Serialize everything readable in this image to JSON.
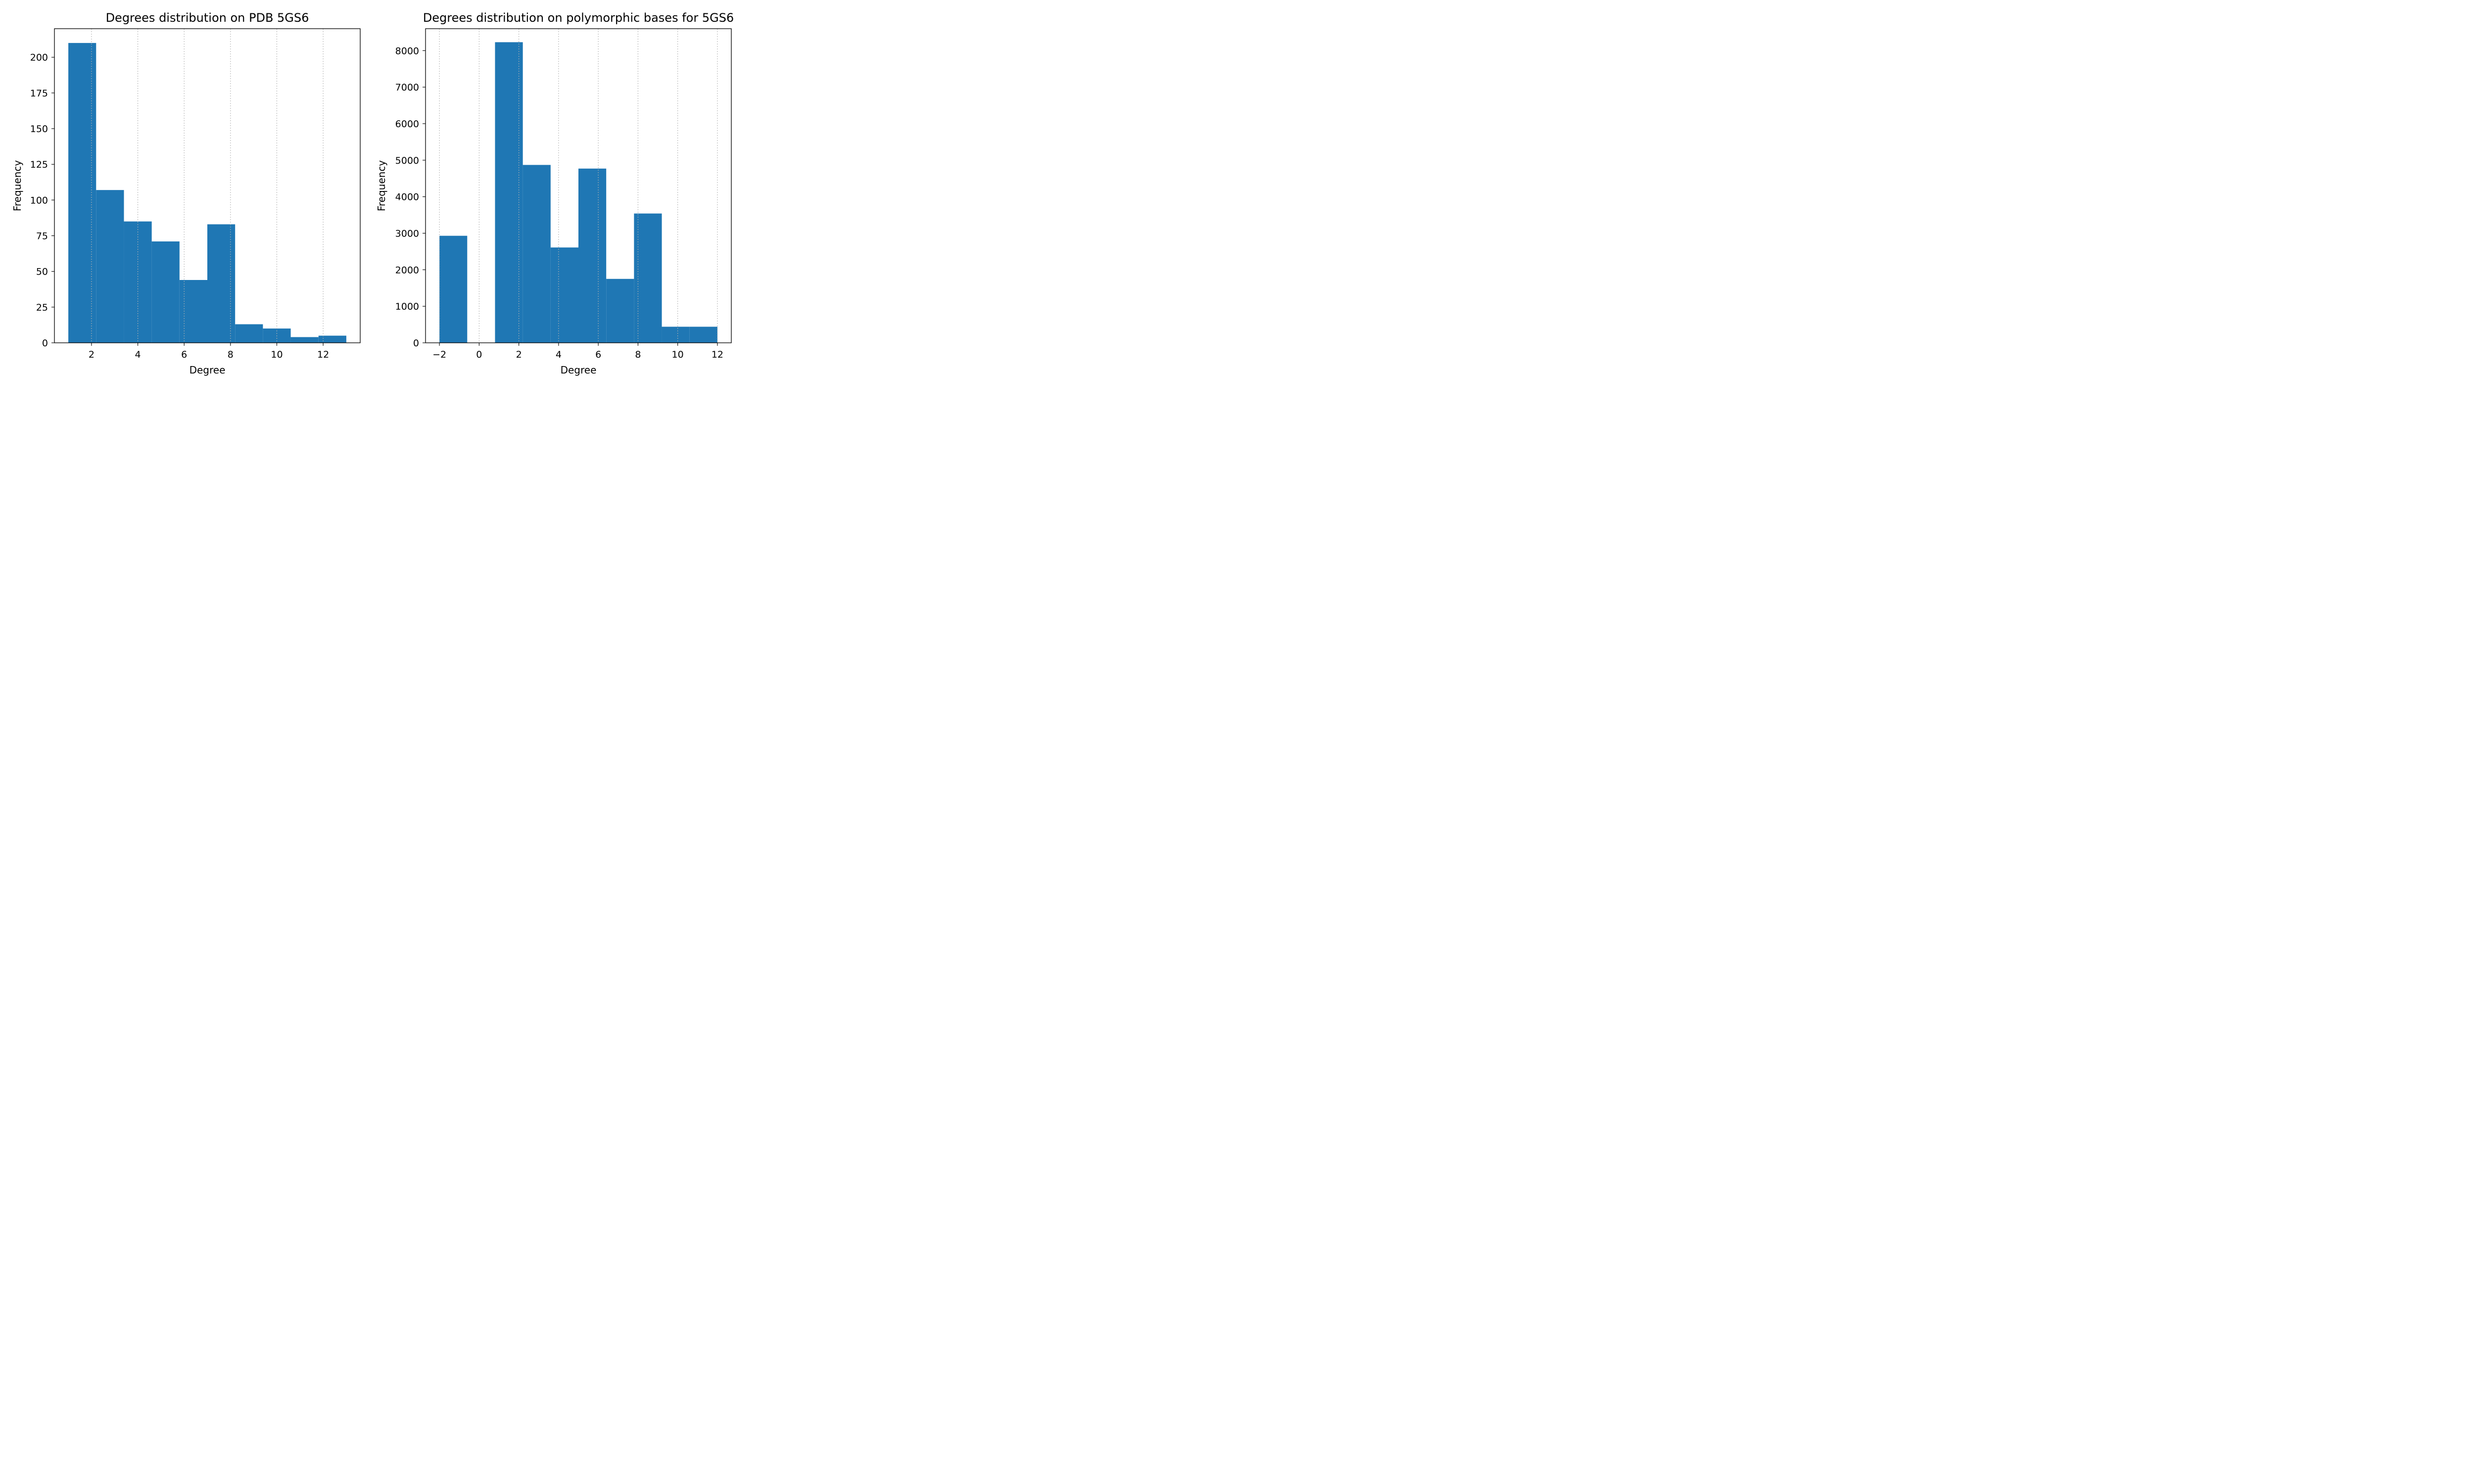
{
  "chart_data": [
    {
      "type": "bar",
      "title": "Degrees distribution on PDB 5GS6",
      "xlabel": "Degree",
      "ylabel": "Frequency",
      "xlim": [
        0.4,
        13.6
      ],
      "ylim": [
        0,
        220
      ],
      "xticks": [
        2,
        4,
        6,
        8,
        10,
        12
      ],
      "xtick_labels": [
        "2",
        "4",
        "6",
        "8",
        "10",
        "12"
      ],
      "yticks": [
        0,
        25,
        50,
        75,
        100,
        125,
        150,
        175,
        200
      ],
      "ytick_labels": [
        "0",
        "25",
        "50",
        "75",
        "100",
        "125",
        "150",
        "175",
        "200"
      ],
      "grid": "x-dotted",
      "bin_edges": [
        1.0,
        2.2,
        3.4,
        4.6,
        5.8,
        7.0,
        8.2,
        9.4,
        10.6,
        11.8,
        13.0
      ],
      "values": [
        210,
        107,
        85,
        71,
        44,
        83,
        13,
        10,
        4,
        5
      ]
    },
    {
      "type": "bar",
      "title": "Degrees distribution on polymorphic bases for 5GS6",
      "xlabel": "Degree",
      "ylabel": "Frequency",
      "xlim": [
        -2.7,
        12.7
      ],
      "ylim": [
        0,
        8600
      ],
      "xticks": [
        -2,
        0,
        2,
        4,
        6,
        8,
        10,
        12
      ],
      "xtick_labels": [
        "−2",
        "0",
        "2",
        "4",
        "6",
        "8",
        "10",
        "12"
      ],
      "yticks": [
        0,
        1000,
        2000,
        3000,
        4000,
        5000,
        6000,
        7000,
        8000
      ],
      "ytick_labels": [
        "0",
        "1000",
        "2000",
        "3000",
        "4000",
        "5000",
        "6000",
        "7000",
        "8000"
      ],
      "grid": "x-dotted",
      "bin_edges": [
        -2.0,
        -0.6,
        0.8,
        2.2,
        3.6,
        5.0,
        6.4,
        7.8,
        9.2,
        10.6,
        12.0
      ],
      "values": [
        2930,
        0,
        8230,
        4870,
        2610,
        4770,
        1750,
        3540,
        440,
        440
      ]
    }
  ],
  "colors": {
    "bar": "#1f77b4"
  }
}
